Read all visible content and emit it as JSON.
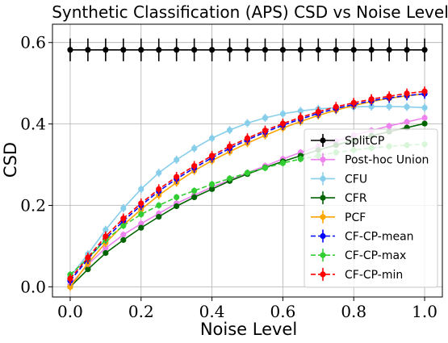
{
  "chart_data": {
    "type": "line",
    "title": "Synthetic Classification (APS) CSD vs Noise Level",
    "xlabel": "Noise Level",
    "ylabel": "CSD",
    "xlim": [
      -0.05,
      1.05
    ],
    "ylim": [
      -0.025,
      0.645
    ],
    "xticks": [
      0.0,
      0.2,
      0.4,
      0.6,
      0.8,
      1.0
    ],
    "xtick_labels": [
      "0.0",
      "0.2",
      "0.4",
      "0.6",
      "0.8",
      "1.0"
    ],
    "yticks": [
      0.0,
      0.2,
      0.4,
      0.6
    ],
    "ytick_labels": [
      "0.0",
      "0.2",
      "0.4",
      "0.6"
    ],
    "grid": true,
    "legend_position": "right",
    "x": [
      0.0,
      0.05,
      0.1,
      0.15,
      0.2,
      0.25,
      0.3,
      0.35,
      0.4,
      0.45,
      0.5,
      0.55,
      0.6,
      0.65,
      0.7,
      0.75,
      0.8,
      0.85,
      0.9,
      0.95,
      1.0
    ],
    "series": [
      {
        "name": "SplitCP",
        "color": "#000000",
        "dash": "solid",
        "marker": "circle",
        "err": 0.028,
        "values": [
          0.582,
          0.582,
          0.582,
          0.582,
          0.582,
          0.582,
          0.582,
          0.582,
          0.582,
          0.582,
          0.582,
          0.582,
          0.582,
          0.582,
          0.582,
          0.582,
          0.582,
          0.582,
          0.582,
          0.582,
          0.582
        ]
      },
      {
        "name": "Post-hoc Union",
        "color": "#ee82ee",
        "dash": "solid",
        "marker": "circle",
        "err": 0.008,
        "values": [
          0.005,
          0.055,
          0.095,
          0.128,
          0.155,
          0.18,
          0.205,
          0.225,
          0.245,
          0.262,
          0.28,
          0.297,
          0.314,
          0.33,
          0.345,
          0.358,
          0.372,
          0.384,
          0.395,
          0.405,
          0.415
        ]
      },
      {
        "name": "CFU",
        "color": "#87ceeb",
        "dash": "solid",
        "marker": "circle",
        "err": 0.01,
        "values": [
          0.025,
          0.08,
          0.14,
          0.193,
          0.24,
          0.28,
          0.312,
          0.34,
          0.365,
          0.385,
          0.402,
          0.415,
          0.425,
          0.432,
          0.437,
          0.44,
          0.442,
          0.443,
          0.443,
          0.442,
          0.44
        ]
      },
      {
        "name": "CFR",
        "color": "#006400",
        "dash": "solid",
        "marker": "circle",
        "err": 0.006,
        "values": [
          0.0,
          0.043,
          0.083,
          0.115,
          0.145,
          0.172,
          0.198,
          0.22,
          0.24,
          0.26,
          0.277,
          0.293,
          0.308,
          0.322,
          0.336,
          0.348,
          0.36,
          0.371,
          0.381,
          0.391,
          0.401
        ]
      },
      {
        "name": "PCF",
        "color": "#ffa500",
        "dash": "solid",
        "marker": "circle",
        "err": 0.01,
        "values": [
          0.0,
          0.058,
          0.108,
          0.152,
          0.19,
          0.225,
          0.256,
          0.285,
          0.31,
          0.332,
          0.353,
          0.372,
          0.39,
          0.406,
          0.421,
          0.434,
          0.445,
          0.455,
          0.463,
          0.469,
          0.474
        ]
      },
      {
        "name": "CF-CP-mean",
        "color": "#0000ff",
        "dash": "dashed",
        "marker": "circle",
        "err": 0.012,
        "values": [
          0.015,
          0.068,
          0.118,
          0.162,
          0.2,
          0.235,
          0.265,
          0.292,
          0.317,
          0.34,
          0.361,
          0.38,
          0.397,
          0.412,
          0.426,
          0.438,
          0.448,
          0.457,
          0.464,
          0.47,
          0.474
        ]
      },
      {
        "name": "CF-CP-max",
        "color": "#32cd32",
        "dash": "dashed",
        "marker": "circle",
        "err": 0.008,
        "values": [
          0.03,
          0.07,
          0.115,
          0.15,
          0.178,
          0.2,
          0.22,
          0.236,
          0.252,
          0.266,
          0.28,
          0.292,
          0.304,
          0.314,
          0.322,
          0.33,
          0.336,
          0.341,
          0.345,
          0.348,
          0.35
        ]
      },
      {
        "name": "CF-CP-min",
        "color": "#ff0000",
        "dash": "dashed",
        "marker": "circle",
        "err": 0.012,
        "values": [
          0.02,
          0.072,
          0.124,
          0.168,
          0.205,
          0.24,
          0.27,
          0.297,
          0.322,
          0.345,
          0.365,
          0.384,
          0.401,
          0.416,
          0.43,
          0.442,
          0.452,
          0.461,
          0.468,
          0.475,
          0.48
        ]
      }
    ]
  }
}
